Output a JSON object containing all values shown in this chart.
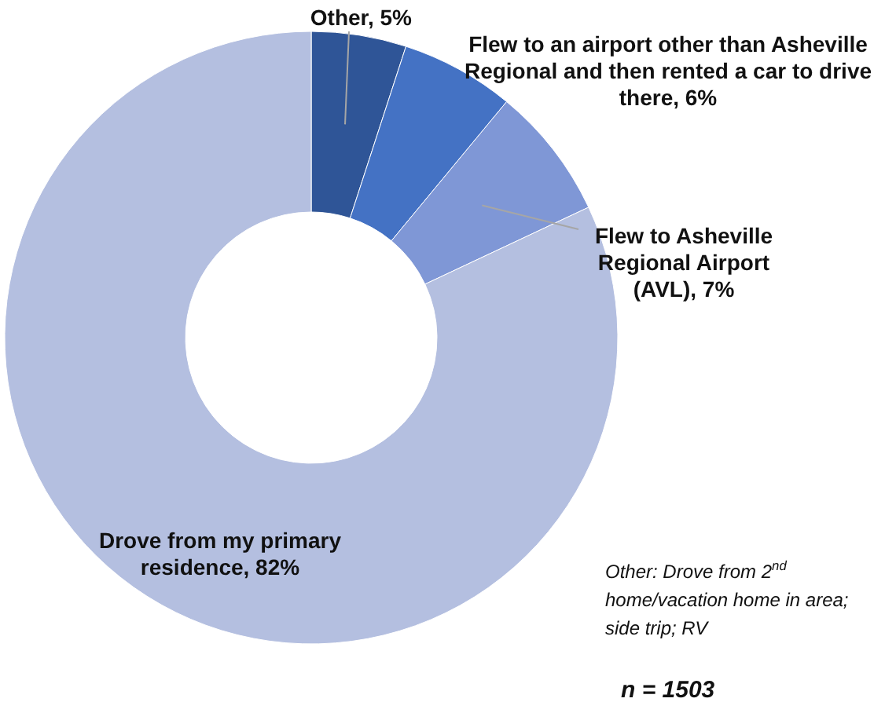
{
  "chart_data": {
    "type": "donut",
    "categories": [
      "Other",
      "Flew to an airport other than Asheville Regional and then rented a car to drive there",
      "Flew to Asheville Regional Airport (AVL)",
      "Drove from my primary residence"
    ],
    "values": [
      5,
      6,
      7,
      82
    ],
    "value_labels": [
      "5%",
      "6%",
      "7%",
      "82%"
    ],
    "colors": [
      "#2f5597",
      "#4472c4",
      "#7f97d6",
      "#b4bfe0"
    ],
    "annotations": [
      "Other: Drove from 2$^{nd}$ home/vacation home in area; side trip; RV",
      "n = 1503"
    ]
  }
}
